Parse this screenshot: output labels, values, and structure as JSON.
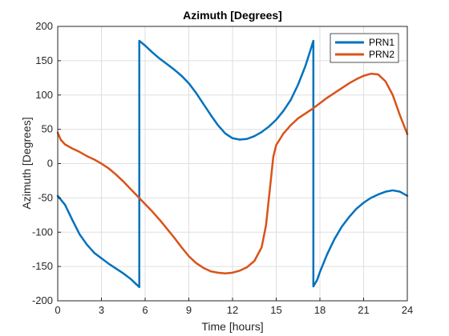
{
  "chart_data": {
    "type": "line",
    "title": "Azimuth [Degrees]",
    "xlabel": "Time [hours]",
    "ylabel": "Azimuth [Degrees]",
    "xlim": [
      0,
      24
    ],
    "ylim": [
      -200,
      200
    ],
    "xticks": [
      0,
      3,
      6,
      9,
      12,
      15,
      18,
      21,
      24
    ],
    "yticks": [
      -200,
      -150,
      -100,
      -50,
      0,
      50,
      100,
      150,
      200
    ],
    "grid": true,
    "legend_position": "top-right",
    "series": [
      {
        "name": "PRN1",
        "color": "#0072BD",
        "points": [
          [
            0,
            -47
          ],
          [
            0.5,
            -60
          ],
          [
            1,
            -82
          ],
          [
            1.5,
            -103
          ],
          [
            2,
            -118
          ],
          [
            2.5,
            -130
          ],
          [
            3,
            -138
          ],
          [
            3.5,
            -146
          ],
          [
            4,
            -153
          ],
          [
            4.5,
            -160
          ],
          [
            5,
            -168
          ],
          [
            5.4,
            -176
          ],
          [
            5.6,
            -180
          ],
          [
            5.6,
            179
          ],
          [
            6,
            172
          ],
          [
            6.5,
            162
          ],
          [
            7,
            153
          ],
          [
            7.5,
            145
          ],
          [
            8,
            137
          ],
          [
            8.5,
            128
          ],
          [
            9,
            117
          ],
          [
            9.5,
            103
          ],
          [
            10,
            87
          ],
          [
            10.5,
            71
          ],
          [
            11,
            56
          ],
          [
            11.5,
            44
          ],
          [
            12,
            37
          ],
          [
            12.5,
            35
          ],
          [
            13,
            36
          ],
          [
            13.5,
            40
          ],
          [
            14,
            46
          ],
          [
            14.5,
            54
          ],
          [
            15,
            64
          ],
          [
            15.5,
            77
          ],
          [
            16,
            93
          ],
          [
            16.5,
            115
          ],
          [
            17,
            142
          ],
          [
            17.3,
            162
          ],
          [
            17.55,
            179
          ],
          [
            17.55,
            -179
          ],
          [
            17.8,
            -170
          ],
          [
            18,
            -158
          ],
          [
            18.5,
            -132
          ],
          [
            19,
            -110
          ],
          [
            19.5,
            -92
          ],
          [
            20,
            -78
          ],
          [
            20.5,
            -66
          ],
          [
            21,
            -57
          ],
          [
            21.5,
            -50
          ],
          [
            22,
            -45
          ],
          [
            22.5,
            -41
          ],
          [
            23,
            -39
          ],
          [
            23.5,
            -41
          ],
          [
            24,
            -47
          ]
        ]
      },
      {
        "name": "PRN2",
        "color": "#D95319",
        "points": [
          [
            0,
            45
          ],
          [
            0.2,
            35
          ],
          [
            0.5,
            28
          ],
          [
            1,
            22
          ],
          [
            1.5,
            17
          ],
          [
            2,
            11
          ],
          [
            2.5,
            6
          ],
          [
            3,
            0
          ],
          [
            3.5,
            -7
          ],
          [
            4,
            -16
          ],
          [
            4.5,
            -26
          ],
          [
            5,
            -37
          ],
          [
            5.5,
            -48
          ],
          [
            6,
            -59
          ],
          [
            6.5,
            -70
          ],
          [
            7,
            -82
          ],
          [
            7.5,
            -95
          ],
          [
            8,
            -108
          ],
          [
            8.5,
            -122
          ],
          [
            9,
            -135
          ],
          [
            9.5,
            -145
          ],
          [
            10,
            -152
          ],
          [
            10.5,
            -157
          ],
          [
            11,
            -159
          ],
          [
            11.5,
            -160
          ],
          [
            12,
            -159
          ],
          [
            12.5,
            -156
          ],
          [
            13,
            -151
          ],
          [
            13.5,
            -142
          ],
          [
            14,
            -122
          ],
          [
            14.3,
            -90
          ],
          [
            14.6,
            -30
          ],
          [
            14.8,
            10
          ],
          [
            15,
            27
          ],
          [
            15.5,
            44
          ],
          [
            16,
            56
          ],
          [
            16.5,
            66
          ],
          [
            17,
            73
          ],
          [
            17.5,
            80
          ],
          [
            18,
            88
          ],
          [
            18.5,
            96
          ],
          [
            19,
            103
          ],
          [
            19.5,
            110
          ],
          [
            20,
            117
          ],
          [
            20.5,
            123
          ],
          [
            21,
            128
          ],
          [
            21.5,
            131
          ],
          [
            22,
            130
          ],
          [
            22.5,
            120
          ],
          [
            23,
            100
          ],
          [
            23.5,
            70
          ],
          [
            24,
            43
          ]
        ]
      }
    ]
  }
}
